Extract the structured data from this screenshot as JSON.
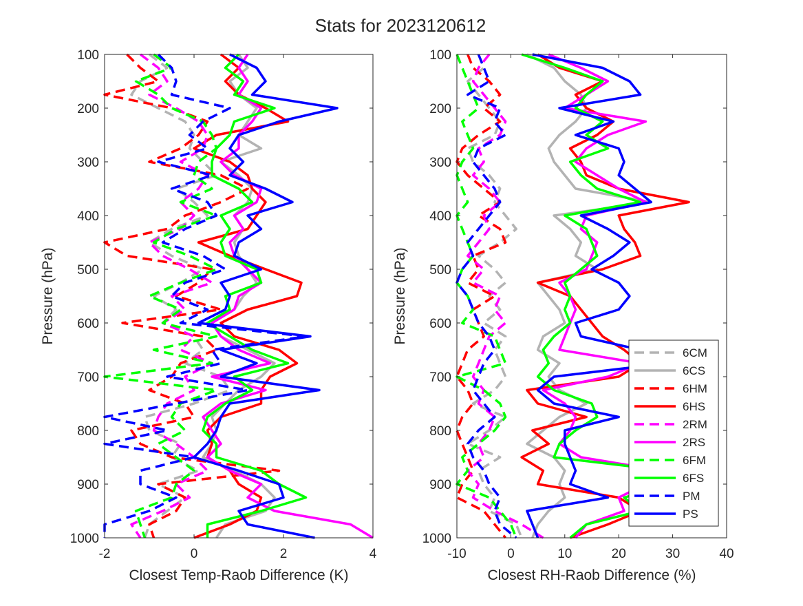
{
  "figure_title": "Stats for 2023120612",
  "series_styles": [
    {
      "name": "6CM",
      "color": "#b3b3b3",
      "dashed": true
    },
    {
      "name": "6CS",
      "color": "#b3b3b3",
      "dashed": false
    },
    {
      "name": "6HM",
      "color": "#ff0000",
      "dashed": true
    },
    {
      "name": "6HS",
      "color": "#ff0000",
      "dashed": false
    },
    {
      "name": "2RM",
      "color": "#ff00ff",
      "dashed": true
    },
    {
      "name": "2RS",
      "color": "#ff00ff",
      "dashed": false
    },
    {
      "name": "6FM",
      "color": "#00ff00",
      "dashed": true
    },
    {
      "name": "6FS",
      "color": "#00ff00",
      "dashed": false
    },
    {
      "name": "PM",
      "color": "#0000ff",
      "dashed": true
    },
    {
      "name": "PS",
      "color": "#0000ff",
      "dashed": false
    }
  ],
  "chart_data": [
    {
      "type": "line",
      "xlabel": "Closest Temp-Raob Difference (K)",
      "ylabel": "Pressure (hPa)",
      "xlim": [
        -2,
        4
      ],
      "ylim": [
        100,
        1000
      ],
      "y_reversed": true,
      "xticks": [
        -2,
        0,
        2,
        4
      ],
      "yticks": [
        100,
        200,
        300,
        400,
        500,
        600,
        700,
        800,
        900,
        1000
      ],
      "grid": false,
      "legend": "none",
      "pressure": [
        100,
        125,
        150,
        175,
        200,
        225,
        250,
        275,
        300,
        325,
        350,
        375,
        400,
        425,
        450,
        475,
        500,
        525,
        550,
        575,
        600,
        625,
        650,
        675,
        700,
        725,
        750,
        775,
        800,
        825,
        850,
        875,
        900,
        925,
        950,
        975,
        1000
      ],
      "series": [
        {
          "name": "6CM",
          "values": [
            -1.0,
            -0.6,
            -1.2,
            -1.4,
            -0.8,
            -0.2,
            0.0,
            -0.1,
            0.2,
            0.5,
            -0.4,
            0.0,
            0.3,
            -0.5,
            -1.0,
            -0.5,
            0.2,
            -0.3,
            -0.9,
            -0.4,
            -0.7,
            0.0,
            0.2,
            -0.2,
            0.6,
            0.8,
            0.0,
            -1.1,
            -1.0,
            -0.3,
            -0.5,
            0.1,
            -0.8,
            -0.2,
            -0.6,
            -1.0,
            -1.1
          ]
        },
        {
          "name": "6CS",
          "values": [
            1.0,
            1.2,
            0.8,
            1.0,
            1.4,
            1.2,
            1.0,
            1.5,
            0.6,
            1.0,
            1.3,
            1.2,
            0.9,
            1.1,
            0.9,
            1.0,
            1.2,
            1.4,
            1.1,
            0.9,
            0.4,
            0.6,
            1.2,
            1.8,
            1.5,
            1.0,
            0.7,
            0.4,
            0.5,
            0.4,
            0.2,
            0.9,
            1.5,
            1.8,
            1.6,
            0.7,
            0.5
          ]
        },
        {
          "name": "6HM",
          "values": [
            -1.5,
            -1.2,
            -0.8,
            -2.0,
            -0.5,
            0.3,
            0.1,
            -0.3,
            -1.0,
            0.6,
            1.2,
            0.6,
            -0.2,
            -0.6,
            -2.0,
            -1.5,
            0.4,
            0.1,
            -0.4,
            0.6,
            -1.6,
            0.2,
            0.5,
            -0.3,
            -0.5,
            -1.0,
            -0.2,
            0.0,
            -1.4,
            -1.2,
            -0.5,
            1.9,
            -0.8,
            -0.2,
            -0.4,
            -1.0,
            -0.9
          ]
        },
        {
          "name": "6HS",
          "values": [
            0.6,
            1.0,
            0.7,
            1.0,
            1.6,
            2.1,
            0.5,
            0.0,
            0.8,
            1.2,
            1.3,
            1.6,
            1.4,
            1.2,
            0.1,
            0.8,
            1.6,
            2.4,
            2.3,
            1.2,
            0.6,
            0.9,
            1.9,
            2.3,
            1.7,
            1.5,
            1.5,
            0.6,
            0.3,
            0.4,
            0.3,
            0.8,
            1.0,
            1.5,
            1.4,
            0.8,
            0.0
          ]
        },
        {
          "name": "2RM",
          "values": [
            -1.2,
            -0.8,
            -0.6,
            -1.0,
            -0.4,
            0.1,
            0.3,
            0.2,
            -0.3,
            0.3,
            0.1,
            -0.3,
            0.0,
            -0.3,
            -1.0,
            -0.7,
            -0.1,
            0.4,
            -0.5,
            -0.2,
            -0.7,
            0.0,
            -0.3,
            0.4,
            -0.2,
            0.0,
            -0.6,
            -0.8,
            -0.9,
            -0.4,
            0.0,
            0.3,
            -0.4,
            -0.1,
            -0.7,
            -1.4,
            -1.2
          ]
        },
        {
          "name": "2RS",
          "values": [
            1.2,
            1.0,
            1.2,
            1.0,
            1.5,
            1.3,
            1.0,
            1.0,
            0.6,
            0.9,
            1.5,
            1.4,
            0.9,
            1.1,
            0.8,
            0.9,
            1.2,
            1.5,
            1.0,
            0.9,
            0.4,
            0.6,
            1.0,
            1.7,
            0.4,
            1.6,
            0.6,
            0.2,
            0.4,
            0.6,
            0.3,
            0.8,
            1.5,
            1.2,
            1.8,
            3.5,
            4.0
          ]
        },
        {
          "name": "6FM",
          "values": [
            -0.9,
            -0.5,
            -1.3,
            -0.8,
            -0.5,
            0.2,
            0.4,
            0.5,
            0.1,
            0.0,
            0.4,
            -0.3,
            0.5,
            -0.4,
            -0.9,
            -0.1,
            0.5,
            -0.3,
            -1.0,
            -0.3,
            -0.7,
            0.5,
            -0.9,
            0.4,
            -2.0,
            0.5,
            -0.3,
            -0.5,
            -0.2,
            -0.8,
            -0.4,
            0.0,
            -0.4,
            -0.5,
            -1.3,
            -1.2,
            -1.1
          ]
        },
        {
          "name": "6FS",
          "values": [
            1.0,
            0.7,
            1.1,
            0.9,
            1.8,
            0.9,
            0.8,
            0.5,
            0.4,
            0.4,
            1.0,
            1.3,
            0.6,
            0.8,
            0.6,
            0.7,
            1.4,
            1.5,
            0.7,
            0.8,
            0.3,
            0.8,
            1.3,
            2.1,
            0.9,
            1.3,
            0.7,
            0.3,
            0.2,
            0.5,
            0.5,
            1.5,
            1.9,
            2.5,
            1.5,
            0.3,
            0.3
          ]
        },
        {
          "name": "PM",
          "values": [
            -0.8,
            -0.5,
            -0.4,
            -0.5,
            0.8,
            0.2,
            -0.1,
            0.3,
            -0.8,
            0.4,
            -0.5,
            0.3,
            0.5,
            -0.2,
            -0.7,
            0.2,
            0.7,
            -0.2,
            -0.5,
            0.3,
            -0.3,
            2.5,
            0.4,
            0.6,
            -0.6,
            1.2,
            -0.4,
            -2.0,
            -0.6,
            -2.0,
            0.0,
            -1.2,
            -1.2,
            -0.4,
            -1.0,
            -2.0,
            -2.0
          ]
        },
        {
          "name": "PS",
          "values": [
            0.8,
            1.4,
            1.6,
            1.3,
            3.2,
            1.9,
            1.0,
            0.8,
            1.1,
            0.8,
            1.6,
            2.2,
            1.2,
            1.5,
            1.0,
            0.9,
            1.5,
            0.6,
            0.8,
            0.7,
            0.1,
            2.6,
            0.6,
            1.4,
            0.6,
            2.8,
            0.8,
            0.6,
            0.5,
            0.3,
            0.0,
            1.0,
            1.9,
            2.0,
            1.0,
            1.2,
            2.7
          ]
        }
      ]
    },
    {
      "type": "line",
      "xlabel": "Closest RH-Raob Difference (%)",
      "ylabel": "Pressure (hPa)",
      "xlim": [
        -10,
        40
      ],
      "ylim": [
        100,
        1000
      ],
      "y_reversed": true,
      "xticks": [
        -10,
        0,
        10,
        20,
        30,
        40
      ],
      "yticks": [
        100,
        200,
        300,
        400,
        500,
        600,
        700,
        800,
        900,
        1000
      ],
      "grid": false,
      "legend": "bottom-right",
      "pressure": [
        100,
        125,
        150,
        175,
        200,
        225,
        250,
        275,
        300,
        325,
        350,
        375,
        400,
        425,
        450,
        475,
        500,
        525,
        550,
        575,
        600,
        625,
        650,
        675,
        700,
        725,
        750,
        775,
        800,
        825,
        850,
        875,
        900,
        925,
        950,
        975,
        1000
      ],
      "series": [
        {
          "name": "6CM",
          "values": [
            -6,
            -5,
            -8,
            -6,
            -4,
            -2,
            -3,
            -8,
            -7,
            -4,
            -2,
            -3,
            -1,
            1,
            -2,
            -6,
            -3,
            -1,
            -4,
            -2,
            -5,
            -1,
            -3,
            -2,
            -1,
            -3,
            -7,
            -1,
            -4,
            -8,
            -2,
            -6,
            -5,
            -3,
            -4,
            1,
            2
          ]
        },
        {
          "name": "6CS",
          "values": [
            3,
            8,
            10,
            13,
            14,
            12,
            9,
            7,
            8,
            10,
            12,
            26,
            8,
            11,
            13,
            12,
            16,
            5,
            7,
            9,
            10,
            6,
            5,
            9,
            7,
            9,
            14,
            9,
            6,
            3,
            8,
            10,
            9,
            10,
            7,
            5,
            4
          ]
        },
        {
          "name": "6HM",
          "values": [
            -8,
            -7,
            -4,
            -2,
            -5,
            -2,
            -6,
            -9,
            -10,
            -8,
            -5,
            -2,
            -6,
            -2,
            -1,
            -7,
            -6,
            -8,
            -3,
            -7,
            -6,
            -5,
            -8,
            -9,
            -10,
            -8,
            -7,
            -9,
            -10,
            -9,
            -8,
            -7,
            -9,
            -10,
            -5,
            -3,
            -1
          ]
        },
        {
          "name": "6HS",
          "values": [
            5,
            9,
            17,
            12,
            14,
            19,
            16,
            11,
            13,
            14,
            20,
            33,
            20,
            21,
            23,
            24,
            17,
            5,
            11,
            13,
            15,
            17,
            21,
            24,
            20,
            3,
            5,
            14,
            4,
            7,
            2,
            6,
            5,
            20,
            24,
            18,
            11
          ]
        },
        {
          "name": "2RM",
          "values": [
            -4,
            -6,
            -7,
            -5,
            -3,
            -1,
            -2,
            -6,
            -5,
            -7,
            -4,
            -2,
            -5,
            -4,
            -6,
            -8,
            -5,
            -7,
            -2,
            -3,
            -1,
            -4,
            -5,
            -6,
            -7,
            -5,
            -6,
            -3,
            -4,
            -6,
            -5,
            -8,
            -6,
            -7,
            -3,
            2,
            6
          ]
        },
        {
          "name": "2RS",
          "values": [
            7,
            13,
            18,
            14,
            10,
            25,
            18,
            14,
            12,
            16,
            20,
            25,
            14,
            13,
            16,
            15,
            14,
            9,
            11,
            12,
            11,
            10,
            9,
            24,
            18,
            6,
            10,
            12,
            11,
            9,
            13,
            28,
            25,
            20,
            21,
            14,
            12
          ]
        },
        {
          "name": "6FM",
          "values": [
            -10,
            -9,
            -8,
            -7,
            -6,
            -9,
            -8,
            -7,
            -9,
            -10,
            -9,
            -8,
            -10,
            -9,
            -8,
            -7,
            -9,
            -10,
            -8,
            -7,
            -9,
            -3,
            -2,
            -1,
            -10,
            -5,
            -2,
            -1,
            -3,
            -6,
            -9,
            -8,
            -10,
            -4,
            -2,
            0,
            1
          ]
        },
        {
          "name": "6FS",
          "values": [
            2,
            10,
            17,
            14,
            12,
            17,
            14,
            18,
            11,
            13,
            16,
            24,
            10,
            14,
            15,
            16,
            13,
            10,
            11,
            10,
            11,
            8,
            6,
            7,
            5,
            8,
            15,
            16,
            12,
            9,
            8,
            29,
            30,
            21,
            24,
            14,
            11
          ]
        },
        {
          "name": "PM",
          "values": [
            -6,
            -5,
            -4,
            -8,
            -2,
            -3,
            -1,
            -6,
            -7,
            -5,
            -3,
            -2,
            -4,
            -6,
            -8,
            -7,
            -9,
            -10,
            -8,
            -7,
            -6,
            -4,
            -3,
            -5,
            -6,
            -7,
            -5,
            -3,
            -6,
            -8,
            -7,
            -5,
            -4,
            -2,
            -3,
            -2,
            1
          ]
        },
        {
          "name": "PS",
          "values": [
            4,
            17,
            22,
            24,
            9,
            19,
            12,
            20,
            21,
            20,
            23,
            26,
            13,
            18,
            22,
            19,
            15,
            20,
            22,
            20,
            12,
            13,
            24,
            29,
            8,
            5,
            8,
            20,
            10,
            10,
            11,
            12,
            11,
            18,
            3,
            4,
            5
          ]
        }
      ]
    }
  ]
}
